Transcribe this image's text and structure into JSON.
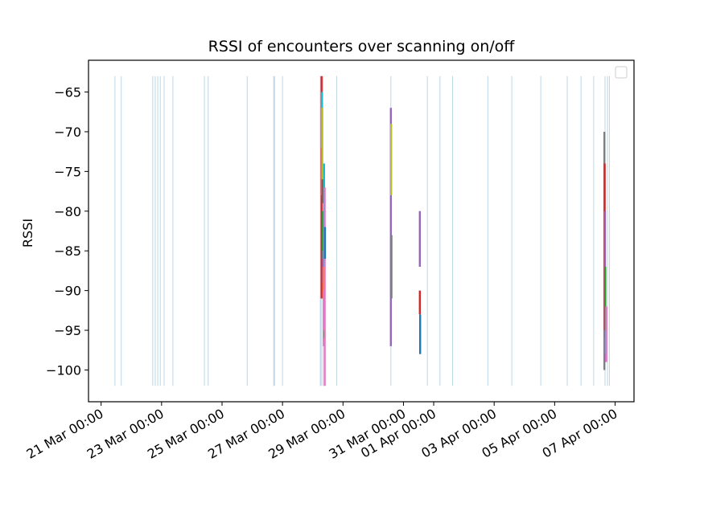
{
  "chart_data": {
    "type": "line",
    "title": "RSSI of encounters over scanning on/off",
    "xlabel": "",
    "ylabel": "RSSI",
    "xlim": [
      "2024-03-20T14:00",
      "2024-04-07T15:00"
    ],
    "ylim": [
      -104,
      -61
    ],
    "grid": false,
    "legend": {
      "placement": "top-right",
      "entries": []
    },
    "x_ticks": [
      {
        "date": "2024-03-21T00:00",
        "label": "21 Mar 00:00"
      },
      {
        "date": "2024-03-23T00:00",
        "label": "23 Mar 00:00"
      },
      {
        "date": "2024-03-25T00:00",
        "label": "25 Mar 00:00"
      },
      {
        "date": "2024-03-27T00:00",
        "label": "27 Mar 00:00"
      },
      {
        "date": "2024-03-29T00:00",
        "label": "29 Mar 00:00"
      },
      {
        "date": "2024-03-31T00:00",
        "label": "31 Mar 00:00"
      },
      {
        "date": "2024-04-01T00:00",
        "label": "01 Apr 00:00"
      },
      {
        "date": "2024-04-03T00:00",
        "label": "03 Apr 00:00"
      },
      {
        "date": "2024-04-05T00:00",
        "label": "05 Apr 00:00"
      },
      {
        "date": "2024-04-07T00:00",
        "label": "07 Apr 00:00"
      }
    ],
    "y_ticks": [
      -65,
      -70,
      -75,
      -80,
      -85,
      -90,
      -95,
      -100
    ],
    "scanning_periods": {
      "color": "#1f77b4",
      "ymin": -102,
      "ymax": -63,
      "x": [
        "2024-03-21T11:00",
        "2024-03-21T16:00",
        "2024-03-22T17:00",
        "2024-03-22T19:00",
        "2024-03-22T21:00",
        "2024-03-22T23:00",
        "2024-03-23T02:00",
        "2024-03-23T09:00",
        "2024-03-24T10:00",
        "2024-03-24T13:00",
        "2024-03-25T20:00",
        "2024-03-26T17:00",
        "2024-03-26T17:40",
        "2024-03-27T00:00",
        "2024-03-28T06:00",
        "2024-03-28T06:40",
        "2024-03-28T08:00",
        "2024-03-28T19:00",
        "2024-03-30T14:00",
        "2024-03-31T19:00",
        "2024-04-01T05:00",
        "2024-04-01T15:00",
        "2024-04-02T19:00",
        "2024-04-03T14:00",
        "2024-04-04T13:00",
        "2024-04-05T10:00",
        "2024-04-05T21:00",
        "2024-04-06T07:00",
        "2024-04-06T16:00",
        "2024-04-06T18:00",
        "2024-04-06T19:30"
      ]
    },
    "encounter_series": [
      {
        "x": "2024-03-28T07:00",
        "y": [
          -63,
          -91
        ],
        "color": "#d62728"
      },
      {
        "x": "2024-03-28T07:15",
        "y": [
          -65,
          -72
        ],
        "color": "#17becf"
      },
      {
        "x": "2024-03-28T07:30",
        "y": [
          -67,
          -78
        ],
        "color": "#bcbd22"
      },
      {
        "x": "2024-03-28T07:45",
        "y": [
          -76,
          -79
        ],
        "color": "#8c564b"
      },
      {
        "x": "2024-03-28T08:00",
        "y": [
          -80,
          -86
        ],
        "color": "#2ca02c"
      },
      {
        "x": "2024-03-28T08:15",
        "y": [
          -85,
          -89
        ],
        "color": "#9467bd"
      },
      {
        "x": "2024-03-28T08:30",
        "y": [
          -87,
          -91
        ],
        "color": "#ff7f0e"
      },
      {
        "x": "2024-03-28T08:45",
        "y": [
          -90,
          -97
        ],
        "color": "#e377c2"
      },
      {
        "x": "2024-03-28T09:00",
        "y": [
          -74,
          -87
        ],
        "color": "#17becf"
      },
      {
        "x": "2024-03-28T09:15",
        "y": [
          -95,
          -96
        ],
        "color": "#2ca02c"
      },
      {
        "x": "2024-03-28T09:30",
        "y": [
          -77,
          -102
        ],
        "color": "#e377c2"
      },
      {
        "x": "2024-03-28T09:45",
        "y": [
          -82,
          -86
        ],
        "color": "#1f77b4"
      },
      {
        "x": "2024-03-30T14:00",
        "y": [
          -67,
          -97
        ],
        "color": "#9467bd"
      },
      {
        "x": "2024-03-30T14:15",
        "y": [
          -69,
          -78
        ],
        "color": "#bcbd22"
      },
      {
        "x": "2024-03-30T14:30",
        "y": [
          -83,
          -91
        ],
        "color": "#7f7f7f"
      },
      {
        "x": "2024-03-31T13:00",
        "y": [
          -80,
          -87
        ],
        "color": "#9467bd"
      },
      {
        "x": "2024-03-31T13:00",
        "y": [
          -90,
          -93
        ],
        "color": "#d62728"
      },
      {
        "x": "2024-03-31T13:15",
        "y": [
          -93,
          -98
        ],
        "color": "#1f77b4"
      },
      {
        "x": "2024-04-06T15:30",
        "y": [
          -70,
          -100
        ],
        "color": "#7f7f7f"
      },
      {
        "x": "2024-04-06T15:45",
        "y": [
          -74,
          -95
        ],
        "color": "#d62728"
      },
      {
        "x": "2024-04-06T16:00",
        "y": [
          -80,
          -99
        ],
        "color": "#9467bd"
      },
      {
        "x": "2024-04-06T16:15",
        "y": [
          -87,
          -96
        ],
        "color": "#2ca02c"
      },
      {
        "x": "2024-04-06T16:30",
        "y": [
          -95,
          -98
        ],
        "color": "#17becf"
      },
      {
        "x": "2024-04-06T17:00",
        "y": [
          -92,
          -99
        ],
        "color": "#e377c2"
      }
    ]
  }
}
